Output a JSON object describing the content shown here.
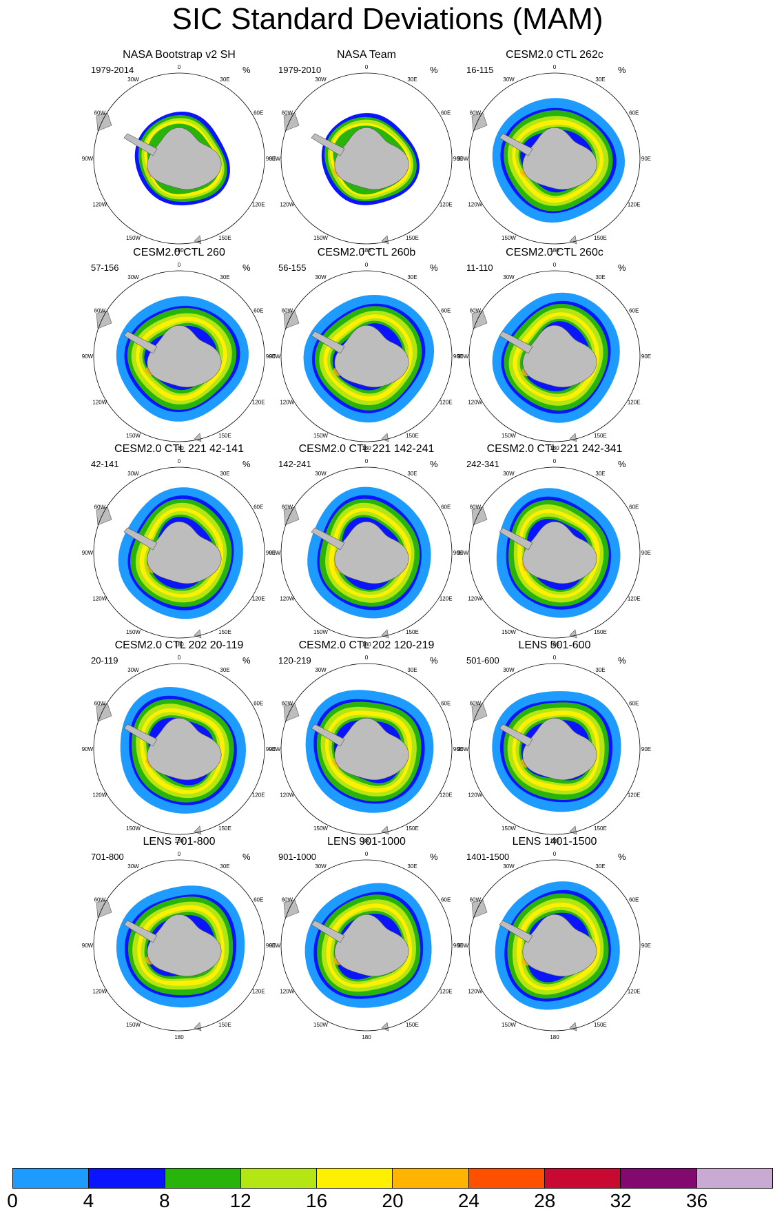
{
  "title": "SIC Standard Deviations (MAM)",
  "units": "%",
  "compass": [
    "0",
    "30E",
    "60E",
    "90E",
    "120E",
    "150E",
    "180",
    "150W",
    "120W",
    "90W",
    "60W",
    "30W"
  ],
  "panels": [
    {
      "title": "NASA Bootstrap v2 SH",
      "years": "1979-2014"
    },
    {
      "title": "NASA Team",
      "years": "1979-2010"
    },
    {
      "title": "CESM2.0 CTL 262c",
      "years": "16-115"
    },
    {
      "title": "CESM2.0 CTL 260",
      "years": "57-156"
    },
    {
      "title": "CESM2.0 CTL 260b",
      "years": "56-155"
    },
    {
      "title": "CESM2.0 CTL 260c",
      "years": "11-110"
    },
    {
      "title": "CESM2.0 CTL 221 42-141",
      "years": "42-141"
    },
    {
      "title": "CESM2.0 CTL 221 142-241",
      "years": "142-241"
    },
    {
      "title": "CESM2.0 CTL 221 242-341",
      "years": "242-341"
    },
    {
      "title": "CESM2.0 CTL 202 20-119",
      "years": "20-119"
    },
    {
      "title": "CESM2.0 CTL 202 120-219",
      "years": "120-219"
    },
    {
      "title": "LENS 501-600",
      "years": "501-600"
    },
    {
      "title": "LENS 701-800",
      "years": "701-800"
    },
    {
      "title": "LENS 901-1000",
      "years": "901-1000"
    },
    {
      "title": "LENS 1401-1500",
      "years": "1401-1500"
    }
  ],
  "colorbar": {
    "colors": [
      "#1e9bff",
      "#0a14ff",
      "#28b40a",
      "#b4e614",
      "#fff000",
      "#ffb400",
      "#ff5000",
      "#c80a32",
      "#820a6e",
      "#c8aad2"
    ],
    "labels": [
      "0",
      "4",
      "8",
      "12",
      "16",
      "20",
      "24",
      "28",
      "32",
      "36"
    ]
  }
}
